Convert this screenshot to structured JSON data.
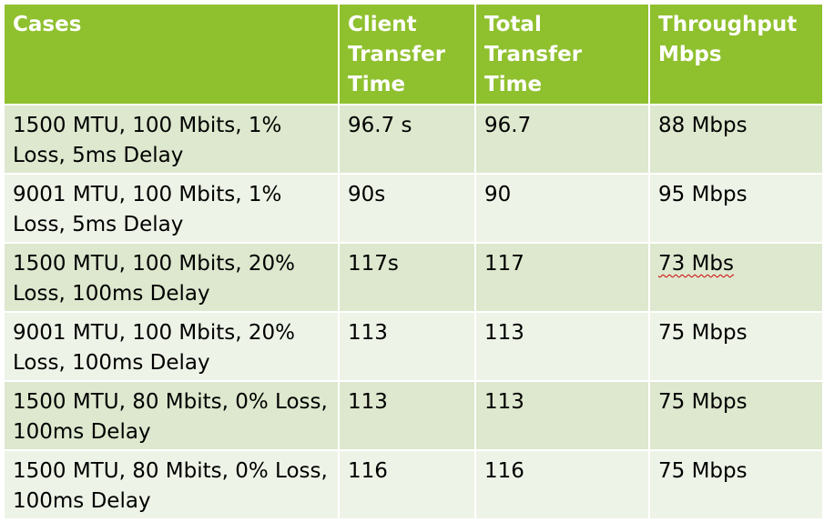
{
  "table": {
    "headers": [
      "Cases",
      "Client Transfer Time",
      "Total Transfer Time",
      "Throughput Mbps"
    ],
    "rows": [
      {
        "case": "1500 MTU, 100 Mbits, 1% Loss, 5ms Delay",
        "client_time": "96.7 s",
        "total_time": "96.7",
        "throughput": "88 Mbps"
      },
      {
        "case": "9001 MTU, 100 Mbits, 1% Loss, 5ms Delay",
        "client_time": "90s",
        "total_time": "90",
        "throughput": "95 Mbps"
      },
      {
        "case": "1500 MTU, 100 Mbits, 20% Loss, 100ms Delay",
        "client_time": "117s",
        "total_time": "117",
        "throughput": "73 Mbs"
      },
      {
        "case": "9001 MTU, 100 Mbits, 20% Loss, 100ms Delay",
        "client_time": "113",
        "total_time": "113",
        "throughput": "75 Mbps"
      },
      {
        "case": "1500 MTU, 80 Mbits, 0% Loss, 100ms Delay",
        "client_time": "113",
        "total_time": "113",
        "throughput": "75 Mbps"
      },
      {
        "case": "1500 MTU, 80 Mbits, 0% Loss, 100ms Delay",
        "client_time": "116",
        "total_time": "116",
        "throughput": "75 Mbps"
      }
    ]
  },
  "colors": {
    "header_bg": "#8fc02e",
    "header_text": "#ffffff",
    "row_odd_bg": "#dde8ce",
    "row_even_bg": "#eef3e7",
    "spellcheck_underline": "#d00000"
  }
}
